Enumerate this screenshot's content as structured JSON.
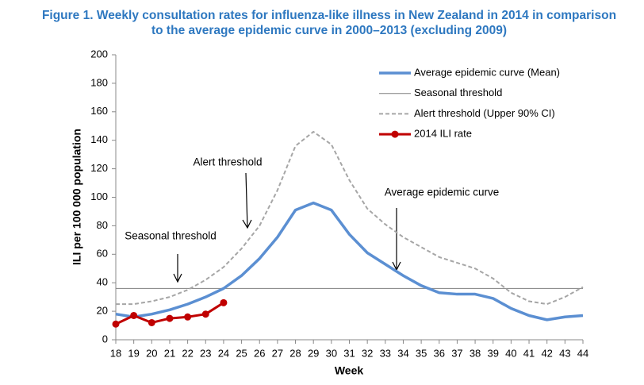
{
  "chart_data": {
    "type": "line",
    "title": [
      "Figure 1. Weekly consultation rates for influenza-like illness in New Zealand in 2014 in comparison",
      "to the average epidemic curve in 2000–2013 (excluding 2009)"
    ],
    "x_label": "Week",
    "y_label": "ILI per 100 000 population",
    "categories": [
      "18",
      "19",
      "20",
      "21",
      "22",
      "23",
      "24",
      "25",
      "26",
      "27",
      "28",
      "29",
      "30",
      "31",
      "32",
      "33",
      "34",
      "35",
      "36",
      "37",
      "38",
      "39",
      "40",
      "41",
      "42",
      "43",
      "44"
    ],
    "ylim": [
      0,
      200
    ],
    "yticks": [
      0,
      20,
      40,
      60,
      80,
      100,
      120,
      140,
      160,
      180,
      200
    ],
    "grid": false,
    "legend": "upper right",
    "series": [
      {
        "name": "Average epidemic curve (Mean)",
        "color": "#5b8fd2",
        "style": "thick",
        "values": [
          18,
          16,
          18,
          21,
          25,
          30,
          36,
          45,
          57,
          72,
          91,
          96,
          91,
          74,
          61,
          53,
          45,
          38,
          33,
          32,
          32,
          29,
          22,
          17,
          14,
          16,
          17
        ]
      },
      {
        "name": "Seasonal threshold",
        "color": "#7f7f7f",
        "style": "thin",
        "values": [
          36,
          36,
          36,
          36,
          36,
          36,
          36,
          36,
          36,
          36,
          36,
          36,
          36,
          36,
          36,
          36,
          36,
          36,
          36,
          36,
          36,
          36,
          36,
          36,
          36,
          36,
          36
        ]
      },
      {
        "name": "Alert threshold (Upper 90% CI)",
        "color": "#a6a6a6",
        "style": "dashed",
        "values": [
          25,
          25,
          27,
          30,
          35,
          42,
          51,
          64,
          80,
          105,
          136,
          146,
          137,
          112,
          92,
          81,
          72,
          65,
          58,
          54,
          50,
          43,
          33,
          27,
          25,
          30,
          37
        ]
      },
      {
        "name": "2014 ILI rate",
        "color": "#c00000",
        "style": "marker",
        "values": [
          11,
          17,
          12,
          15,
          16,
          18,
          26,
          null,
          null,
          null,
          null,
          null,
          null,
          null,
          null,
          null,
          null,
          null,
          null,
          null,
          null,
          null,
          null,
          null,
          null,
          null,
          null
        ]
      }
    ],
    "annotations": [
      "Alert threshold",
      "Seasonal threshold",
      "Average epidemic curve"
    ]
  }
}
